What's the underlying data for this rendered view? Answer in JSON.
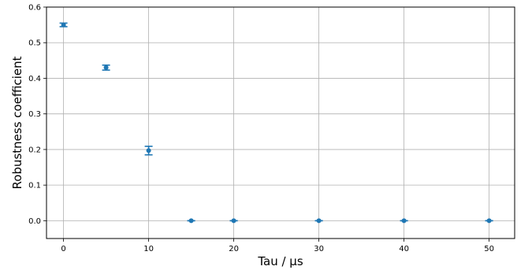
{
  "chart_data": {
    "type": "scatter",
    "title": "",
    "xlabel": "Tau / μs",
    "ylabel": "Robustness coefficient",
    "xlim": [
      -2,
      53
    ],
    "ylim": [
      -0.05,
      0.6
    ],
    "x_ticks": [
      0,
      10,
      20,
      30,
      40,
      50
    ],
    "x_tick_labels": [
      "0",
      "10",
      "20",
      "30",
      "40",
      "50"
    ],
    "y_ticks": [
      0.0,
      0.1,
      0.2,
      0.3,
      0.4,
      0.5,
      0.6
    ],
    "y_tick_labels": [
      "0.0",
      "0.1",
      "0.2",
      "0.3",
      "0.4",
      "0.5",
      "0.6"
    ],
    "grid": true,
    "legend": "none",
    "series": [
      {
        "x": [
          0,
          5,
          10,
          15,
          20,
          30,
          40,
          50
        ],
        "y": [
          0.55,
          0.43,
          0.197,
          0.0,
          0.0,
          0.0,
          0.0,
          0.0
        ],
        "yerr": [
          0.005,
          0.007,
          0.012,
          0.0,
          0.0,
          0.0,
          0.0,
          0.0
        ],
        "color": "#1f77b4"
      }
    ]
  }
}
